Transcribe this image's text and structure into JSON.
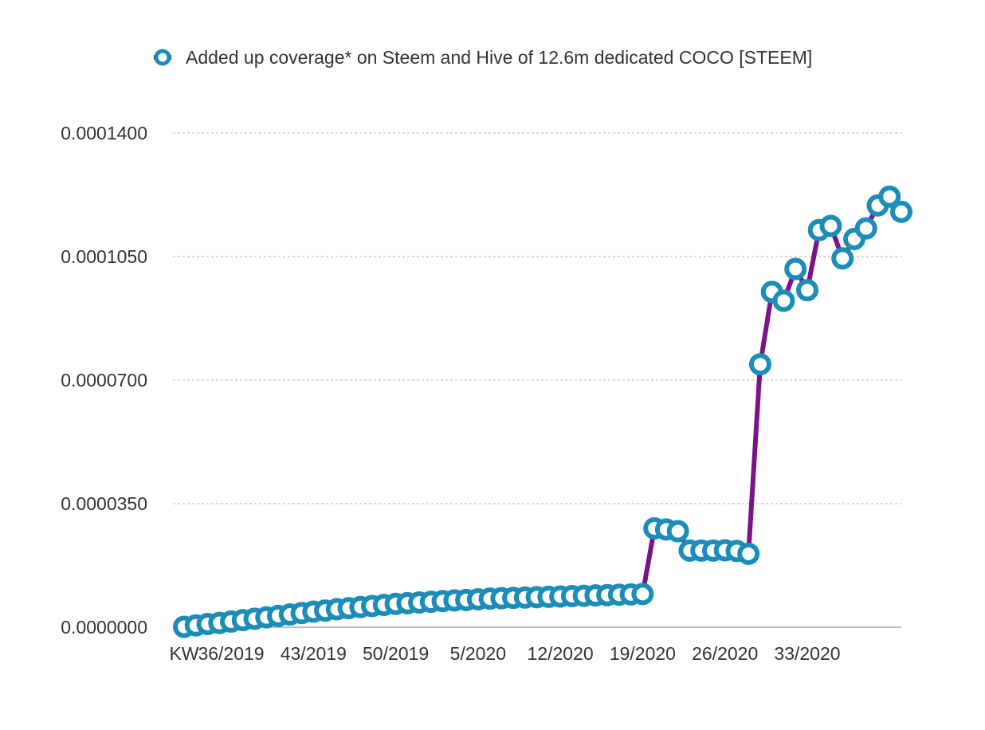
{
  "chart_data": {
    "type": "line",
    "title": "",
    "xlabel": "",
    "ylabel": "",
    "legend": {
      "position": "top",
      "label": "Added up coverage* on Steem and Hive of 12.6m dedicated COCO [STEEM]"
    },
    "x_tick_labels": [
      "KW",
      "36/2019",
      "43/2019",
      "50/2019",
      "5/2020",
      "12/2020",
      "19/2020",
      "26/2020",
      "33/2020"
    ],
    "y_tick_labels": [
      "0.0000000",
      "0.0000350",
      "0.0000700",
      "0.0001050",
      "0.0001400"
    ],
    "ylim": [
      0,
      0.00014
    ],
    "grid": true,
    "series": [
      {
        "name": "Added up coverage* on Steem and Hive of 12.6m dedicated COCO [STEEM]",
        "line_color": "#7B1487",
        "marker_color": "#1B8DB8",
        "values": [
          1e-07,
          5e-07,
          9e-07,
          1.2e-06,
          1.6e-06,
          2e-06,
          2.4e-06,
          2.8e-06,
          3.2e-06,
          3.6e-06,
          4e-06,
          4.4e-06,
          4.7e-06,
          5.1e-06,
          5.4e-06,
          5.7e-06,
          6e-06,
          6.3e-06,
          6.6e-06,
          6.8e-06,
          7e-06,
          7.2e-06,
          7.4e-06,
          7.6e-06,
          7.7e-06,
          7.9e-06,
          8.1e-06,
          8.2e-06,
          8.3e-06,
          8.4e-06,
          8.5e-06,
          8.6e-06,
          8.7e-06,
          8.8e-06,
          8.9e-06,
          9e-06,
          9.1e-06,
          9.2e-06,
          9.3e-06,
          9.4e-06,
          2.8e-05,
          2.77e-05,
          2.72e-05,
          2.17e-05,
          2.17e-05,
          2.17e-05,
          2.18e-05,
          2.16e-05,
          2.08e-05,
          7.45e-05,
          9.5e-05,
          9.25e-05,
          0.0001015,
          9.55e-05,
          0.0001125,
          0.0001137,
          0.0001045,
          0.00011,
          0.000113,
          0.0001195,
          0.000122,
          0.0001177
        ]
      }
    ]
  }
}
